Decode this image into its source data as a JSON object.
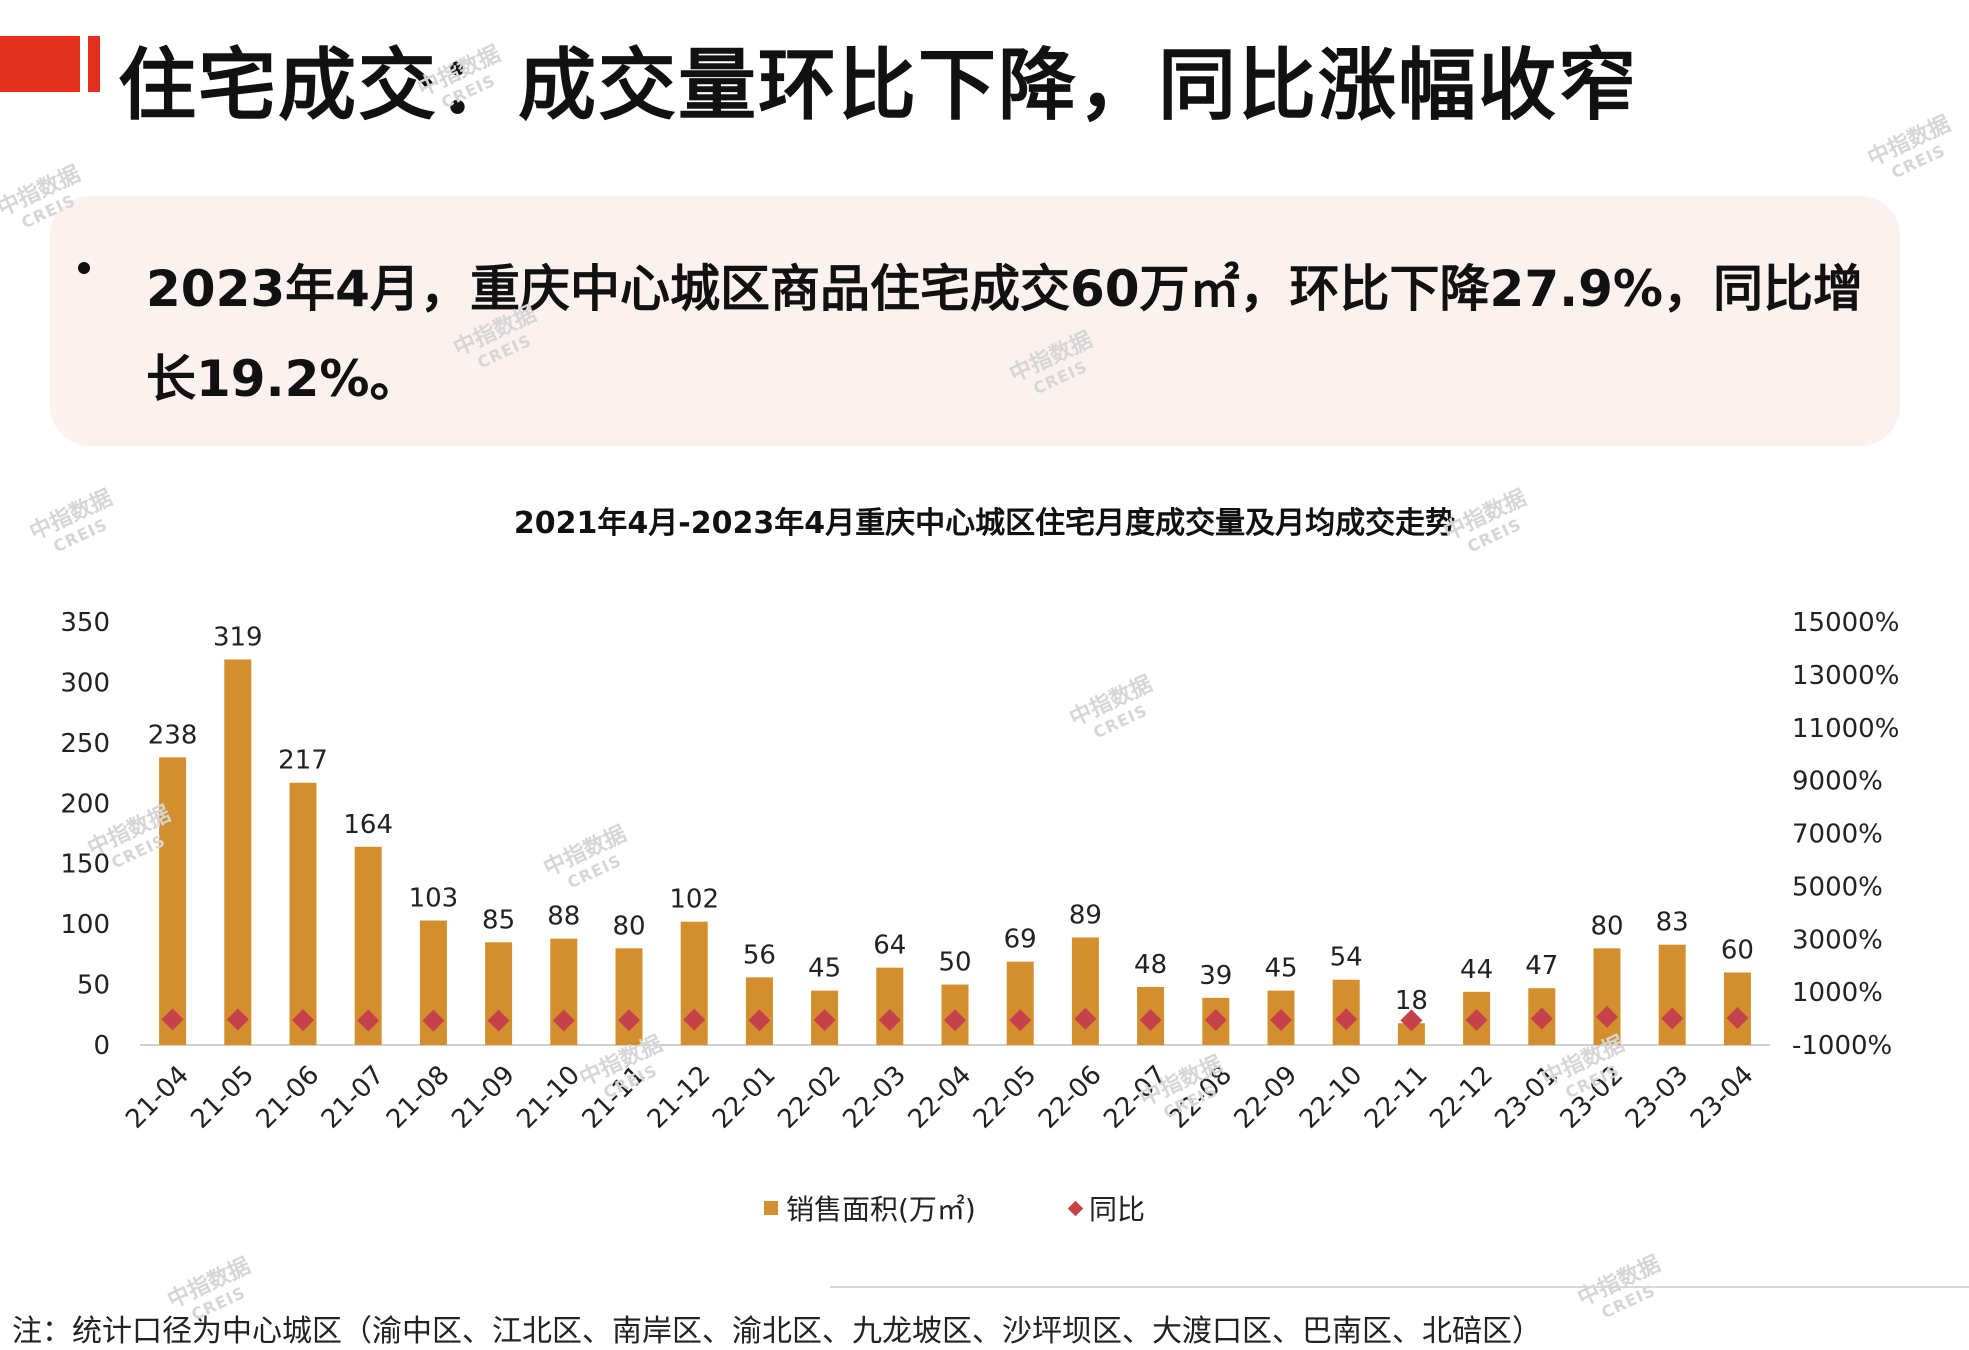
{
  "slide_title": "住宅成交：成交量环比下降，同比涨幅收窄",
  "summary": "2023年4月，重庆中心城区商品住宅成交60万㎡，环比下降27.9%，同比增长19.2%。",
  "colors": {
    "accent": "#e2301e",
    "bar": "#d38f2e",
    "diamond": "#c6424a",
    "summary_bg": "#fbf1ef"
  },
  "watermark": {
    "line1": "中指数据",
    "line2": "CREIS"
  },
  "legend": {
    "sales": "销售面积(万㎡)",
    "yoy": "同比"
  },
  "footnote": "注：统计口径为中心城区（渝中区、江北区、南岸区、渝北区、九龙坡区、沙坪坝区、大渡口区、巴南区、北碚区）",
  "chart_data": {
    "type": "bar",
    "title": "2021年4月-2023年4月重庆中心城区住宅月度成交量及月均成交走势",
    "categories": [
      "21-04",
      "21-05",
      "21-06",
      "21-07",
      "21-08",
      "21-09",
      "21-10",
      "21-11",
      "21-12",
      "22-01",
      "22-02",
      "22-03",
      "22-04",
      "22-05",
      "22-06",
      "22-07",
      "22-08",
      "22-09",
      "22-10",
      "22-11",
      "22-12",
      "23-01",
      "23-02",
      "23-03",
      "23-04"
    ],
    "series": [
      {
        "name": "销售面积(万㎡)",
        "type": "bar",
        "axis": "left",
        "values": [
          238,
          319,
          217,
          164,
          103,
          85,
          88,
          80,
          102,
          56,
          45,
          64,
          50,
          69,
          89,
          48,
          39,
          45,
          54,
          18,
          44,
          47,
          80,
          83,
          60
        ]
      },
      {
        "name": "同比",
        "type": "scatter",
        "axis": "right",
        "marker": "diamond",
        "values": [
          -33,
          -34,
          -59,
          -74,
          -79,
          -78,
          -74,
          -62,
          -40,
          -68,
          -57,
          -54,
          -62,
          -62,
          -5,
          -54,
          -55,
          -54,
          -27,
          -70,
          -56,
          0,
          63,
          3,
          19
        ]
      }
    ],
    "y_left": {
      "min": 0,
      "max": 350,
      "ticks": [
        "0",
        "50",
        "100",
        "150",
        "200",
        "250",
        "300",
        "350"
      ]
    },
    "y_right": {
      "min": -1000,
      "max": 15000,
      "ticks": [
        "-1000%",
        "1000%",
        "3000%",
        "5000%",
        "7000%",
        "9000%",
        "11000%",
        "13000%",
        "15000%"
      ]
    },
    "grid": false,
    "legend_position": "bottom"
  }
}
